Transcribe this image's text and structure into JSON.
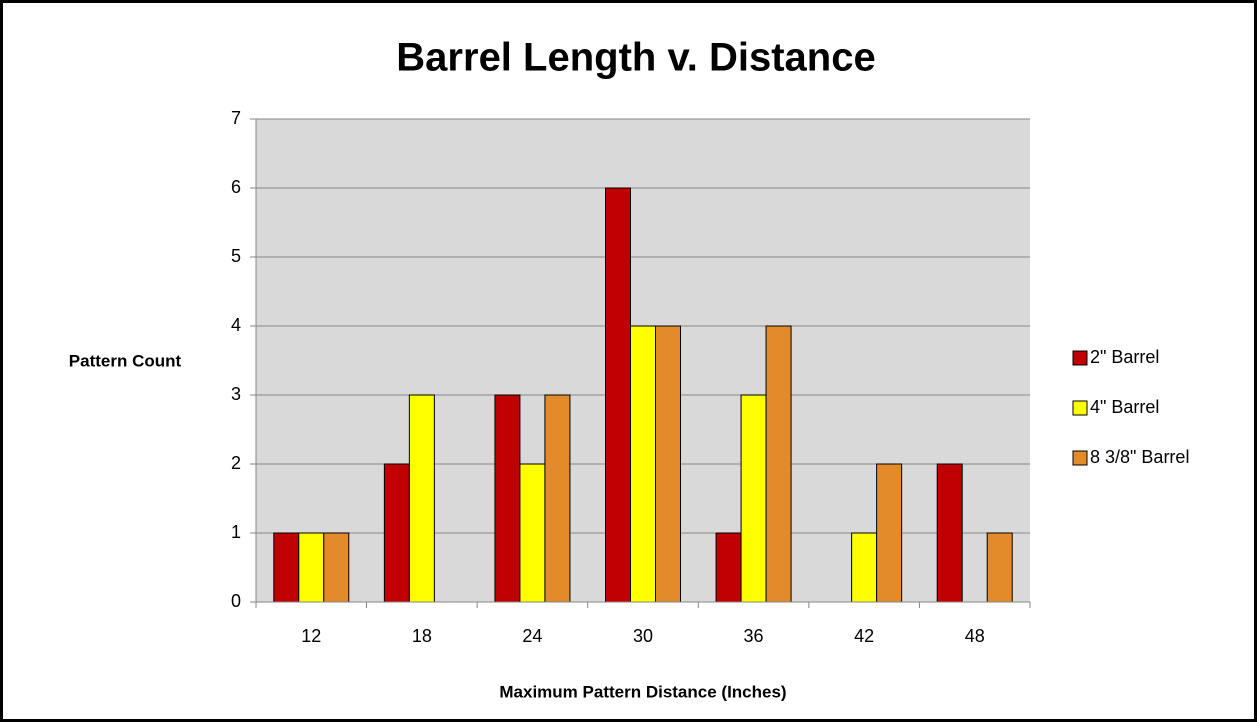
{
  "chart_data": {
    "type": "bar",
    "title": "Barrel Length v. Distance",
    "xlabel": "Maximum Pattern Distance (Inches)",
    "ylabel": "Pattern Count",
    "categories": [
      "12",
      "18",
      "24",
      "30",
      "36",
      "42",
      "48"
    ],
    "series": [
      {
        "name": "2\" Barrel",
        "color": "#c00000",
        "values": [
          1,
          2,
          3,
          6,
          1,
          0,
          2
        ]
      },
      {
        "name": "4\" Barrel",
        "color": "#ffff00",
        "values": [
          1,
          3,
          2,
          4,
          3,
          1,
          0
        ]
      },
      {
        "name": "8 3/8\" Barrel",
        "color": "#e38b2b",
        "values": [
          1,
          0,
          3,
          4,
          4,
          2,
          1
        ]
      }
    ],
    "ylim": [
      0,
      7
    ],
    "yticks": [
      0,
      1,
      2,
      3,
      4,
      5,
      6,
      7
    ],
    "grid": true,
    "legend": "right"
  }
}
